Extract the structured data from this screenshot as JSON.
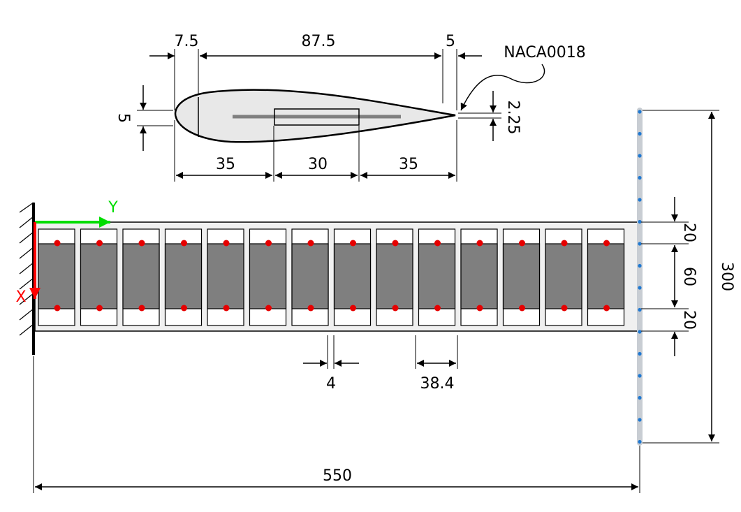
{
  "airfoil": {
    "name": "NACA0018",
    "top_dims": {
      "leading": "7.5",
      "main": "87.5",
      "trailing": "5"
    },
    "bottom_dims": {
      "front": "35",
      "middle": "30",
      "rear": "35"
    },
    "thickness": "5",
    "trailing_gap": "2.25"
  },
  "beam": {
    "panel_count": 14,
    "dims": {
      "top_strip": "20",
      "core": "60",
      "bottom_strip": "20",
      "total_height": "300",
      "length": "550",
      "gap": "4",
      "pitch": "38.4"
    }
  },
  "axes": {
    "y_label": "Y",
    "x_label": "X"
  },
  "colors": {
    "outline": "#000000",
    "panel_fill": "#7f7f7f",
    "beam_fill": "#f0f0f0",
    "airfoil_fill": "#e8e8e8",
    "red_marker": "#e60000",
    "blue_marker": "#1f78d1",
    "edge_bar": "#c8cdd3",
    "axis_x": "#ff0000",
    "axis_y": "#00dd00"
  }
}
